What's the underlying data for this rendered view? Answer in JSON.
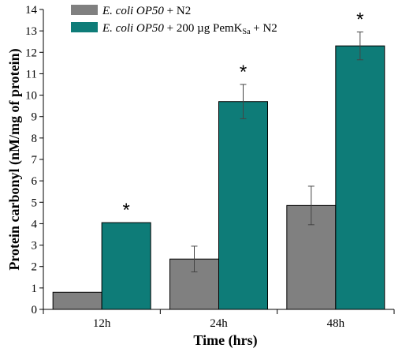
{
  "chart_data": {
    "type": "bar",
    "title": "",
    "xlabel": "Time (hrs)",
    "ylabel": "Protein carbonyl (nM/mg of protein)",
    "categories": [
      "12h",
      "24h",
      "48h"
    ],
    "ylim": [
      0,
      14
    ],
    "yticks": [
      "0",
      "1",
      "2",
      "3",
      "4",
      "5",
      "6",
      "7",
      "8",
      "9",
      "10",
      "11",
      "12",
      "13",
      "14"
    ],
    "grid": false,
    "legend_position": "top-left",
    "series": [
      {
        "name_italic": "E. coli OP50",
        "name_rest": " + N2",
        "color": "#808080",
        "values": [
          0.8,
          2.35,
          4.85
        ],
        "errors": [
          null,
          0.6,
          0.9
        ]
      },
      {
        "name_italic": "E. coli OP50",
        "name_rest": " + 200 µg PemK",
        "name_sub": "Sa",
        "name_tail": " + N2",
        "color": "#0E7C78",
        "values": [
          4.05,
          9.7,
          12.3
        ],
        "errors": [
          null,
          0.8,
          0.65
        ]
      }
    ],
    "annotations": [
      "*",
      "*",
      "*"
    ]
  }
}
